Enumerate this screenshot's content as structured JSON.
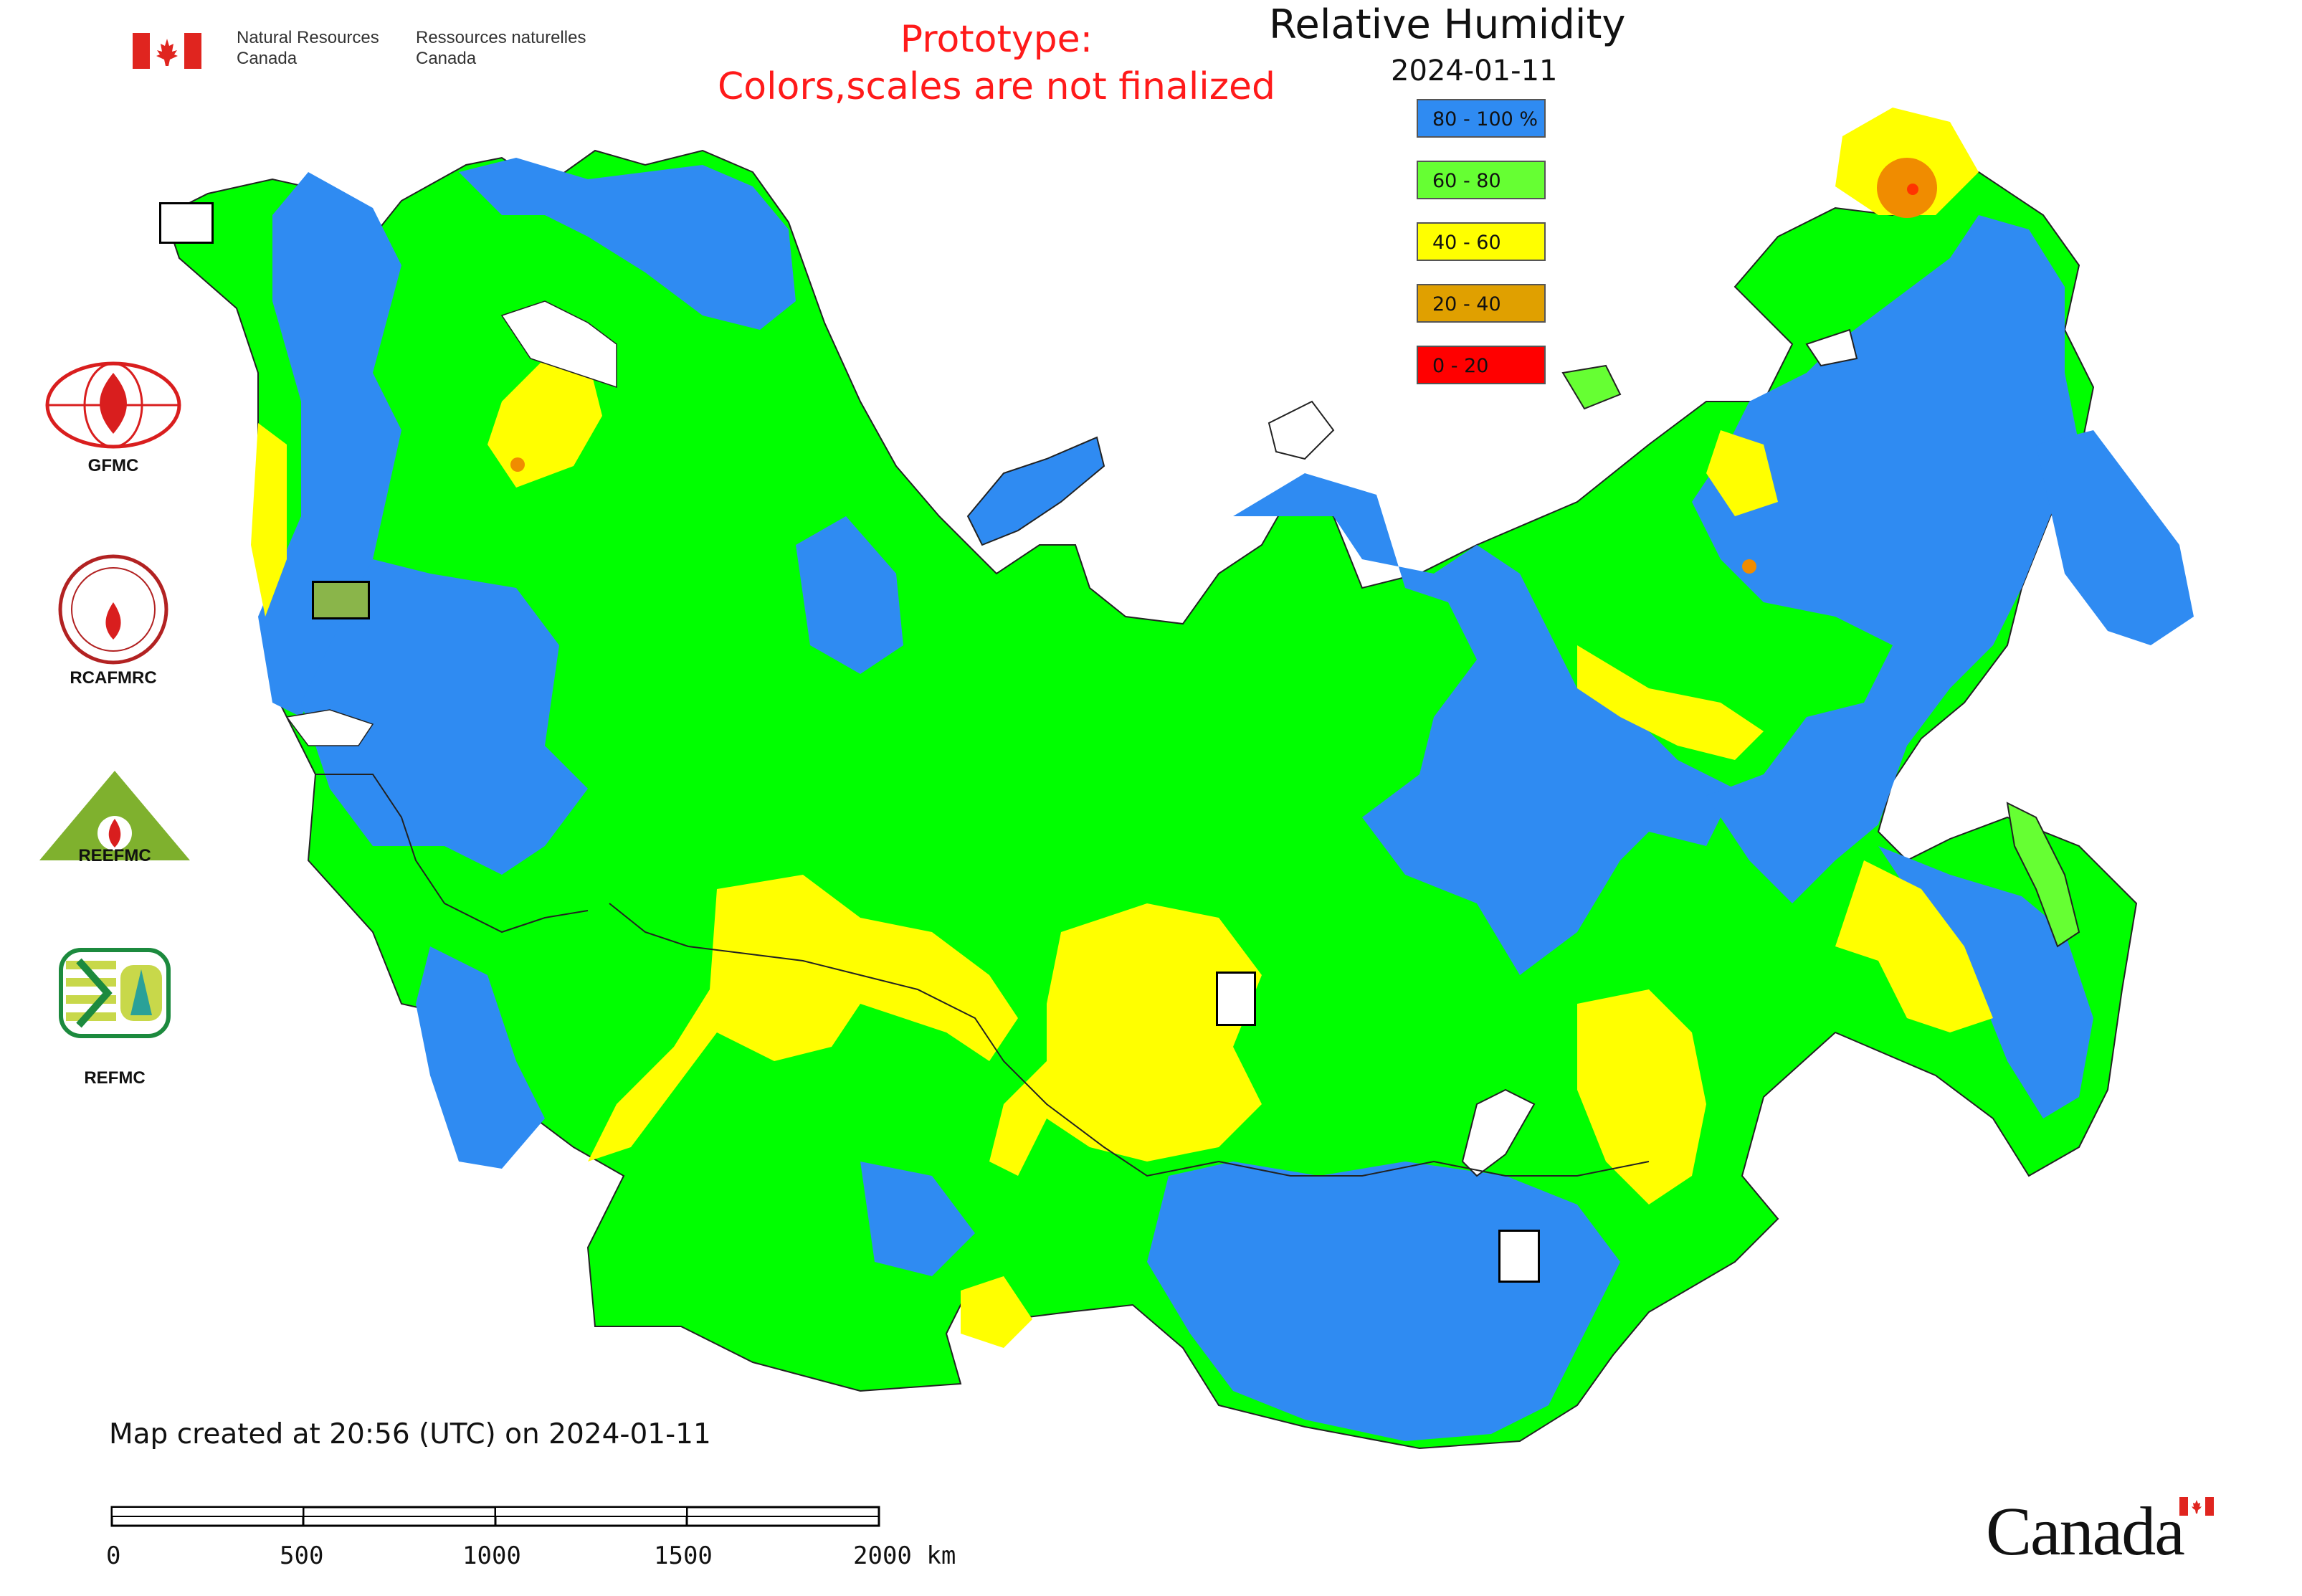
{
  "header": {
    "dept_en_line1": "Natural Resources",
    "dept_en_line2": "Canada",
    "dept_fr_line1": "Ressources naturelles",
    "dept_fr_line2": "Canada",
    "prototype_line1": "Prototype:",
    "prototype_line2": "Colors,scales are not finalized"
  },
  "legend": {
    "title": "Relative Humidity",
    "date": "2024-01-11",
    "items": [
      {
        "label": "80 - 100 %",
        "color": "#2f8bf2"
      },
      {
        "label": "60 - 80",
        "color": "#66ff33"
      },
      {
        "label": "40 - 60",
        "color": "#ffff00"
      },
      {
        "label": "20 - 40",
        "color": "#e0a000"
      },
      {
        "label": "0 - 20",
        "color": "#ff0000"
      }
    ]
  },
  "partners": [
    {
      "label": "GFMC"
    },
    {
      "label": "RCAFMRC"
    },
    {
      "label": "REEFMC"
    },
    {
      "label": "REFMC"
    }
  ],
  "footer": {
    "created": "Map created at 20:56 (UTC) on 2024-01-11",
    "scale_labels": [
      "0",
      "500",
      "1000",
      "1500",
      "2000 km"
    ],
    "wordmark": "Canada"
  },
  "colors": {
    "humid_blue": "#2f8bf2",
    "green": "#00ff00",
    "yellow": "#ffff00",
    "orange": "#f08c00",
    "red": "#ff0000"
  }
}
